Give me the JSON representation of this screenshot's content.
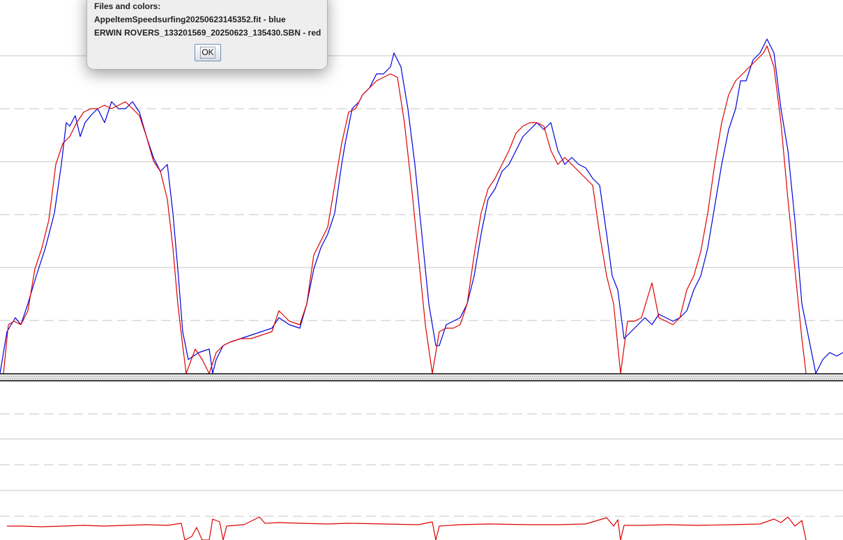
{
  "dialog": {
    "heading": "Files and colors:",
    "line1": "AppeltemSpeedsurfing20250623145352.fit - blue",
    "line2": "ERWIN ROVERS_133201569_20250623_135430.SBN - red",
    "ok_label": "OK"
  },
  "chart_data": [
    {
      "type": "line",
      "grid": true,
      "series": [
        {
          "color": "#0000dd",
          "points": [
            [
              0,
              0
            ],
            [
              10,
              60
            ],
            [
              22,
              80
            ],
            [
              30,
              70
            ],
            [
              40,
              100
            ],
            [
              52,
              140
            ],
            [
              65,
              180
            ],
            [
              78,
              230
            ],
            [
              88,
              300
            ],
            [
              95,
              360
            ],
            [
              100,
              355
            ],
            [
              108,
              370
            ],
            [
              115,
              340
            ],
            [
              122,
              360
            ],
            [
              130,
              370
            ],
            [
              140,
              380
            ],
            [
              150,
              360
            ],
            [
              160,
              390
            ],
            [
              170,
              380
            ],
            [
              180,
              380
            ],
            [
              190,
              390
            ],
            [
              200,
              375
            ],
            [
              210,
              340
            ],
            [
              220,
              310
            ],
            [
              230,
              290
            ],
            [
              240,
              300
            ],
            [
              248,
              230
            ],
            [
              255,
              150
            ],
            [
              262,
              60
            ],
            [
              270,
              20
            ],
            [
              285,
              30
            ],
            [
              300,
              35
            ],
            [
              305,
              0
            ],
            [
              310,
              20
            ],
            [
              320,
              40
            ],
            [
              330,
              45
            ],
            [
              345,
              50
            ],
            [
              360,
              55
            ],
            [
              375,
              60
            ],
            [
              390,
              65
            ],
            [
              400,
              80
            ],
            [
              415,
              70
            ],
            [
              430,
              65
            ],
            [
              440,
              100
            ],
            [
              450,
              150
            ],
            [
              460,
              180
            ],
            [
              470,
              200
            ],
            [
              480,
              230
            ],
            [
              490,
              300
            ],
            [
              495,
              330
            ],
            [
              505,
              380
            ],
            [
              515,
              390
            ],
            [
              520,
              400
            ],
            [
              530,
              410
            ],
            [
              540,
              430
            ],
            [
              550,
              430
            ],
            [
              560,
              440
            ],
            [
              565,
              460
            ],
            [
              575,
              440
            ],
            [
              585,
              380
            ],
            [
              595,
              300
            ],
            [
              605,
              200
            ],
            [
              615,
              100
            ],
            [
              625,
              40
            ],
            [
              630,
              40
            ],
            [
              640,
              70
            ],
            [
              650,
              75
            ],
            [
              660,
              80
            ],
            [
              670,
              100
            ],
            [
              680,
              140
            ],
            [
              690,
              200
            ],
            [
              700,
              250
            ],
            [
              710,
              265
            ],
            [
              720,
              290
            ],
            [
              730,
              300
            ],
            [
              740,
              320
            ],
            [
              750,
              340
            ],
            [
              760,
              350
            ],
            [
              770,
              360
            ],
            [
              780,
              350
            ],
            [
              790,
              360
            ],
            [
              800,
              320
            ],
            [
              810,
              300
            ],
            [
              820,
              310
            ],
            [
              830,
              300
            ],
            [
              840,
              295
            ],
            [
              850,
              280
            ],
            [
              860,
              270
            ],
            [
              870,
              200
            ],
            [
              878,
              140
            ],
            [
              886,
              120
            ],
            [
              895,
              50
            ],
            [
              905,
              60
            ],
            [
              915,
              70
            ],
            [
              925,
              80
            ],
            [
              935,
              70
            ],
            [
              945,
              85
            ],
            [
              955,
              80
            ],
            [
              965,
              75
            ],
            [
              975,
              80
            ],
            [
              985,
              90
            ],
            [
              995,
              120
            ],
            [
              1005,
              140
            ],
            [
              1015,
              180
            ],
            [
              1025,
              240
            ],
            [
              1035,
              300
            ],
            [
              1045,
              350
            ],
            [
              1055,
              380
            ],
            [
              1062,
              420
            ],
            [
              1070,
              420
            ],
            [
              1080,
              450
            ],
            [
              1090,
              460
            ],
            [
              1100,
              480
            ],
            [
              1110,
              460
            ],
            [
              1120,
              380
            ],
            [
              1130,
              320
            ],
            [
              1140,
              220
            ],
            [
              1150,
              100
            ],
            [
              1160,
              50
            ],
            [
              1170,
              0
            ],
            [
              1180,
              20
            ],
            [
              1190,
              30
            ],
            [
              1200,
              25
            ],
            [
              1209,
              30
            ]
          ]
        },
        {
          "color": "#dd0000",
          "points": [
            [
              5,
              0
            ],
            [
              12,
              70
            ],
            [
              20,
              75
            ],
            [
              30,
              70
            ],
            [
              40,
              90
            ],
            [
              50,
              150
            ],
            [
              60,
              180
            ],
            [
              70,
              220
            ],
            [
              80,
              300
            ],
            [
              90,
              330
            ],
            [
              100,
              340
            ],
            [
              110,
              360
            ],
            [
              120,
              375
            ],
            [
              130,
              380
            ],
            [
              140,
              380
            ],
            [
              150,
              385
            ],
            [
              160,
              380
            ],
            [
              170,
              385
            ],
            [
              180,
              390
            ],
            [
              190,
              380
            ],
            [
              200,
              370
            ],
            [
              210,
              340
            ],
            [
              220,
              305
            ],
            [
              230,
              290
            ],
            [
              240,
              250
            ],
            [
              248,
              180
            ],
            [
              255,
              100
            ],
            [
              262,
              40
            ],
            [
              267,
              0
            ],
            [
              280,
              35
            ],
            [
              290,
              20
            ],
            [
              300,
              0
            ],
            [
              310,
              30
            ],
            [
              320,
              40
            ],
            [
              330,
              45
            ],
            [
              345,
              50
            ],
            [
              360,
              50
            ],
            [
              375,
              55
            ],
            [
              390,
              60
            ],
            [
              400,
              90
            ],
            [
              415,
              75
            ],
            [
              430,
              70
            ],
            [
              440,
              100
            ],
            [
              450,
              170
            ],
            [
              460,
              190
            ],
            [
              470,
              210
            ],
            [
              480,
              270
            ],
            [
              490,
              330
            ],
            [
              500,
              375
            ],
            [
              510,
              380
            ],
            [
              520,
              400
            ],
            [
              530,
              410
            ],
            [
              540,
              420
            ],
            [
              550,
              425
            ],
            [
              560,
              430
            ],
            [
              570,
              425
            ],
            [
              580,
              360
            ],
            [
              590,
              270
            ],
            [
              600,
              170
            ],
            [
              610,
              70
            ],
            [
              620,
              0
            ],
            [
              630,
              60
            ],
            [
              640,
              65
            ],
            [
              650,
              65
            ],
            [
              660,
              70
            ],
            [
              670,
              100
            ],
            [
              680,
              170
            ],
            [
              690,
              230
            ],
            [
              700,
              265
            ],
            [
              710,
              280
            ],
            [
              720,
              300
            ],
            [
              730,
              320
            ],
            [
              740,
              345
            ],
            [
              750,
              355
            ],
            [
              760,
              360
            ],
            [
              770,
              360
            ],
            [
              780,
              355
            ],
            [
              790,
              320
            ],
            [
              800,
              300
            ],
            [
              810,
              310
            ],
            [
              820,
              300
            ],
            [
              830,
              290
            ],
            [
              840,
              280
            ],
            [
              850,
              270
            ],
            [
              860,
              200
            ],
            [
              870,
              140
            ],
            [
              880,
              100
            ],
            [
              890,
              0
            ],
            [
              900,
              75
            ],
            [
              910,
              75
            ],
            [
              920,
              80
            ],
            [
              935,
              130
            ],
            [
              945,
              80
            ],
            [
              955,
              75
            ],
            [
              965,
              70
            ],
            [
              975,
              80
            ],
            [
              985,
              120
            ],
            [
              995,
              140
            ],
            [
              1005,
              175
            ],
            [
              1015,
              230
            ],
            [
              1025,
              300
            ],
            [
              1035,
              360
            ],
            [
              1045,
              400
            ],
            [
              1055,
              420
            ],
            [
              1065,
              430
            ],
            [
              1075,
              440
            ],
            [
              1085,
              450
            ],
            [
              1095,
              460
            ],
            [
              1100,
              470
            ],
            [
              1110,
              440
            ],
            [
              1120,
              360
            ],
            [
              1130,
              250
            ],
            [
              1140,
              150
            ],
            [
              1150,
              50
            ],
            [
              1156,
              0
            ]
          ]
        }
      ]
    },
    {
      "type": "line",
      "grid": true,
      "series": [
        {
          "color": "#dd0000",
          "points": [
            [
              10,
              20
            ],
            [
              30,
              20
            ],
            [
              60,
              19
            ],
            [
              90,
              20
            ],
            [
              120,
              21
            ],
            [
              150,
              20
            ],
            [
              180,
              21
            ],
            [
              210,
              22
            ],
            [
              240,
              21
            ],
            [
              260,
              24
            ],
            [
              265,
              0
            ],
            [
              275,
              5
            ],
            [
              282,
              18
            ],
            [
              290,
              0
            ],
            [
              300,
              0
            ],
            [
              305,
              30
            ],
            [
              315,
              26
            ],
            [
              320,
              0
            ],
            [
              325,
              20
            ],
            [
              350,
              22
            ],
            [
              372,
              33
            ],
            [
              380,
              24
            ],
            [
              400,
              25
            ],
            [
              430,
              24
            ],
            [
              470,
              23
            ],
            [
              500,
              24
            ],
            [
              550,
              23
            ],
            [
              600,
              22
            ],
            [
              620,
              26
            ],
            [
              625,
              0
            ],
            [
              630,
              20
            ],
            [
              660,
              22
            ],
            [
              700,
              23
            ],
            [
              760,
              22
            ],
            [
              800,
              22
            ],
            [
              840,
              23
            ],
            [
              870,
              32
            ],
            [
              880,
              20
            ],
            [
              886,
              29
            ],
            [
              890,
              0
            ],
            [
              895,
              21
            ],
            [
              920,
              21
            ],
            [
              960,
              22
            ],
            [
              1000,
              21
            ],
            [
              1050,
              22
            ],
            [
              1090,
              23
            ],
            [
              1110,
              30
            ],
            [
              1120,
              25
            ],
            [
              1130,
              33
            ],
            [
              1140,
              20
            ],
            [
              1150,
              28
            ],
            [
              1156,
              0
            ]
          ]
        }
      ]
    }
  ]
}
